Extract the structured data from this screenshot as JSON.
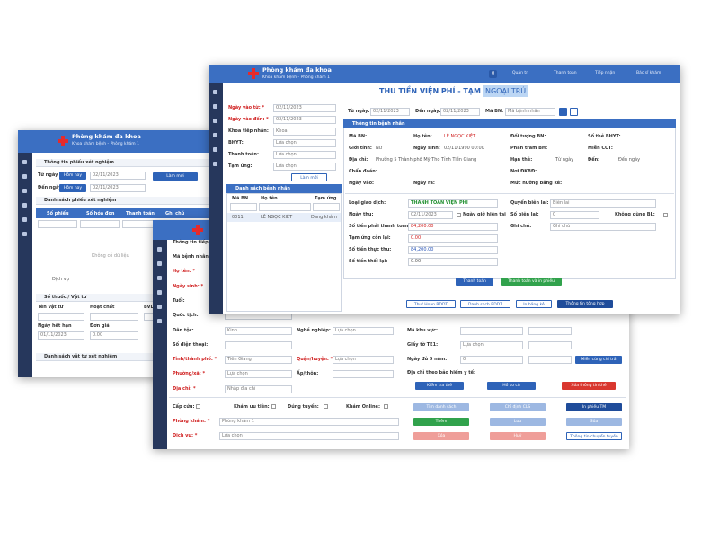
{
  "back_window": {
    "header": {
      "title": "Phòng khám đa khoa",
      "subtitle": "Khoa khám bệnh - Phòng khám 1"
    },
    "search": {
      "title": "Thông tin phiếu xét nghiệm",
      "from_label": "Từ ngày",
      "to_label": "Đến ngày",
      "today_button": "Hôm nay",
      "from_date": "02/11/2023",
      "to_date": "02/11/2023",
      "refresh_button": "Làm mới"
    },
    "list": {
      "title": "Danh sách phiếu xét nghiệm",
      "columns": [
        "Số phiếu",
        "Số hóa đơn",
        "Thanh toán",
        "Ghi chú"
      ],
      "empty": "Không có dữ liệu",
      "footer": "Dịch vụ"
    },
    "drug": {
      "title": "Số thuốc / Vật tư",
      "labels": [
        "Tên vật tư",
        "Hoạt chất",
        "BVDT",
        "Ngày hết hạn",
        "Đơn giá"
      ],
      "expiry": "01/11/2023",
      "price": "0.00"
    },
    "bottom_title": "Danh sách vật tư xét nghiệm"
  },
  "middle_window": {
    "section_title": "Thông tin tiếp nhận",
    "left_fields": [
      {
        "label": "Mã bệnh nhân:"
      },
      {
        "label": "Họ tên: *"
      },
      {
        "label": "Ngày sinh: *"
      },
      {
        "label": "Tuổi:"
      },
      {
        "label": "Quốc tịch:"
      },
      {
        "label": "Dân tộc:",
        "value": "Kinh"
      },
      {
        "label": "Số điện thoại:"
      },
      {
        "label": "Tỉnh/thành phố: *",
        "value": "Tiền Giang"
      },
      {
        "label": "Phường/xã: *",
        "value": "Lựa chọn"
      },
      {
        "label": "Địa chỉ: *",
        "value": "Nhập địa chỉ"
      }
    ],
    "mid_fields": [
      {
        "label": "Nghề nghiệp:",
        "value": "Lựa chọn"
      },
      {
        "label": "Quận/huyện: *",
        "value": "Lựa chọn"
      },
      {
        "label": "Ấp/thôn:"
      }
    ],
    "right_fields": [
      {
        "label": "Mã khu vực:"
      },
      {
        "label": "Giấy tờ TE1:",
        "value": "Lựa chọn"
      },
      {
        "label": "Ngày đủ 5 năm:",
        "value": "0"
      }
    ],
    "exempt_button": "Miễn cùng chi trả",
    "insurance_address": "Địa chỉ theo bảo hiểm y tế:",
    "card_buttons": [
      "Kiểm tra thẻ",
      "Hồ sơ cũ",
      "Xóa thông tin thẻ"
    ],
    "options": [
      "Cấp cứu:",
      "Khám ưu tiên:",
      "Đúng tuyến:",
      "Khám Online:"
    ],
    "clinic": {
      "label": "Phòng khám: *",
      "value": "Phòng khám 1"
    },
    "service": {
      "label": "Dịch vụ: *",
      "value": "Lựa chọn"
    },
    "action_buttons": [
      [
        "Tìm danh sách",
        "Chỉ định CLS",
        "In phiếu TM"
      ],
      [
        "Thêm",
        "Lưu",
        "Sửa"
      ],
      [
        "Xóa",
        "Huỷ",
        "Thông tin chuyển tuyến"
      ]
    ]
  },
  "front_window": {
    "header": {
      "title": "Phòng khám đa khoa",
      "subtitle": "Khoa khám bệnh - Phòng khám 1",
      "badge": "0",
      "menu": [
        "Quản trị",
        "Thanh toán",
        "Tiếp nhận",
        "Bác sĩ khám"
      ]
    },
    "tabs": [
      "THU TIỀN VIỆN PHÍ - TẠM ỨNG",
      "NGOẠI TRÚ"
    ],
    "filters": [
      {
        "label": "Ngày vào từ: *",
        "value": "02/11/2023"
      },
      {
        "label": "Ngày vào đến: *",
        "value": "02/11/2023"
      },
      {
        "label": "Khoa tiếp nhận:",
        "value": "Khoa"
      },
      {
        "label": "BHYT:",
        "value": "Lựa chọn"
      },
      {
        "label": "Thanh toán:",
        "value": "Lựa chọn"
      },
      {
        "label": "Tạm ứng:",
        "value": "Lựa chọn"
      }
    ],
    "refresh_button": "Làm mới",
    "patient_list": {
      "title": "Danh sách bệnh nhân",
      "columns": [
        "Mã BN",
        "Họ tên",
        "Tạm ứng"
      ],
      "rows": [
        [
          "0011",
          "LÊ NGỌC KIỆT",
          "Đang khám"
        ]
      ]
    },
    "search": {
      "from_label": "Từ ngày:",
      "from": "02/11/2023",
      "to_label": "Đến ngày:",
      "to": "02/11/2023",
      "code_label": "Mã BN:",
      "code_placeholder": "Mã bệnh nhân"
    },
    "patient_info": {
      "title": "Thông tin bệnh nhân",
      "left_rows": [
        [
          {
            "label": "Mã BN:"
          },
          {
            "label": "Họ tên:",
            "value": "LÊ NGỌC KIỆT"
          }
        ],
        [
          {
            "label": "Giới tính:",
            "value": "Nữ"
          },
          {
            "label": "Ngày sinh:",
            "value": "02/11/1990 00:00"
          }
        ],
        [
          {
            "label": "Địa chỉ:",
            "value": "Phường 5 Thành phố Mỹ Tho Tỉnh Tiền Giang"
          }
        ],
        [
          {
            "label": "Chẩn đoán:"
          }
        ],
        [
          {
            "label": "Ngày vào:"
          },
          {
            "label": "Ngày ra:"
          }
        ]
      ],
      "right_rows": [
        [
          {
            "label": "Đối tượng BN:"
          },
          {
            "label": "Số thẻ BHYT:"
          }
        ],
        [
          {
            "label": "Phần trăm BH:"
          },
          {
            "label": "Miễn CCT:"
          }
        ],
        [
          {
            "label": "Hạn thẻ:",
            "value": "Từ ngày"
          },
          {
            "label": "Đến:",
            "value": "Đến ngày"
          }
        ],
        [
          {
            "label": "Nơi ĐKBĐ:"
          }
        ],
        [
          {
            "label": "Mức hưởng bảng kê:",
            "value": "0"
          }
        ]
      ]
    },
    "payment": {
      "left": [
        {
          "label": "Loại giao dịch:",
          "value": "THANH TOÁN VIỆN PHÍ"
        },
        {
          "label": "Ngày thu:",
          "value": "02/11/2023"
        },
        {
          "label": "Số tiền phải thanh toán:",
          "value": "84,200.00"
        },
        {
          "label": "Tạm ứng còn lại:",
          "value": "0.00"
        },
        {
          "label": "Số tiền thực thu:",
          "value": "84,200.00"
        },
        {
          "label": "Số tiền thối lại:",
          "value": "0.00"
        }
      ],
      "current_time": "Ngày giờ hiện tại",
      "right": [
        {
          "label": "Quyển biên lai:",
          "value": "Biên lai"
        },
        {
          "label": "Số biên lai:",
          "value": "0"
        },
        {
          "label": "Ghi chú:",
          "value": "Ghi chú"
        }
      ],
      "no_receipt": "Không dùng BL:",
      "buttons": [
        "Thanh toán",
        "Thanh toán và in phiếu"
      ]
    },
    "actions": [
      "Thu/ Hoàn BDDT",
      "Danh sách BDDT",
      "In bảng kê",
      "Thông tin tổng hợp"
    ]
  }
}
